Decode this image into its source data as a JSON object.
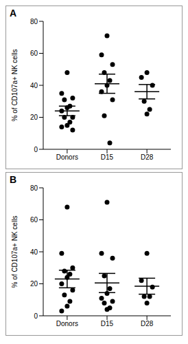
{
  "chart_data": [
    {
      "type": "scatter",
      "title": "A",
      "ylabel": "% of CD107a+ NK cells",
      "categories": [
        "Donors",
        "D15",
        "D28"
      ],
      "values": [
        [
          48,
          35,
          32,
          31,
          27,
          26,
          24,
          20,
          20,
          17,
          15,
          14,
          12
        ],
        [
          71,
          59,
          53,
          48,
          43,
          40,
          36,
          31,
          21,
          4
        ],
        [
          48,
          45,
          40,
          30,
          25,
          22
        ]
      ],
      "mean": [
        24,
        41,
        36
      ],
      "sem": [
        3,
        6,
        4.5
      ],
      "color": "#000000",
      "marker": "circle",
      "ylim": [
        0,
        80
      ],
      "yticks": [
        0,
        20,
        40,
        60,
        80
      ]
    },
    {
      "type": "scatter",
      "title": "B",
      "ylabel": "% of CD107a+ NK cells",
      "categories": [
        "Donors",
        "D15",
        "D28"
      ],
      "values": [
        [
          68,
          39,
          30,
          28,
          26,
          24,
          20,
          16,
          13,
          9,
          6,
          3
        ],
        [
          71,
          39,
          36,
          25,
          17,
          14,
          11,
          9,
          8,
          5,
          4
        ],
        [
          39,
          22,
          18,
          12,
          12,
          8
        ]
      ],
      "mean": [
        23,
        20.5,
        18.5
      ],
      "sem": [
        5.5,
        6,
        5
      ],
      "color": "#000000",
      "marker": "circle",
      "ylim": [
        0,
        80
      ],
      "yticks": [
        0,
        20,
        40,
        60,
        80
      ]
    }
  ]
}
